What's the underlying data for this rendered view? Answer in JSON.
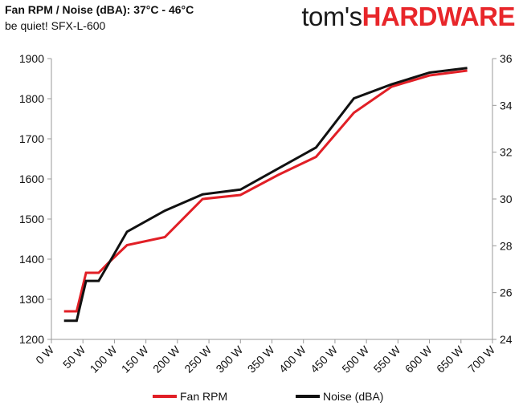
{
  "header": {
    "title": "Fan RPM / Noise (dBA): 37°C - 46°C",
    "subtitle": "be quiet! SFX-L-600",
    "brand_part1": "tom's",
    "brand_part2": "HARDWARE"
  },
  "colors": {
    "fan": "#e11f26",
    "noise": "#111111",
    "axis": "#9a9a9a",
    "brand_red": "#e8262a"
  },
  "chart_data": {
    "type": "line",
    "title": "Fan RPM / Noise (dBA): 37°C - 46°C",
    "subtitle": "be quiet! SFX-L-600",
    "grid": false,
    "legend_position": "bottom",
    "x_ticks": [
      "0 W",
      "50 W",
      "100 W",
      "150 W",
      "200 W",
      "250 W",
      "300 W",
      "350 W",
      "400 W",
      "450 W",
      "500 W",
      "550 W",
      "600 W",
      "650 W",
      "700 W"
    ],
    "xlim": [
      0,
      700
    ],
    "ylim_left": [
      1200,
      1900
    ],
    "y_ticks_left": [
      1200,
      1300,
      1400,
      1500,
      1600,
      1700,
      1800,
      1900
    ],
    "ylim_right": [
      24,
      36
    ],
    "y_ticks_right": [
      24,
      26,
      28,
      30,
      32,
      34,
      36
    ],
    "series": [
      {
        "name": "Fan RPM",
        "axis": "left",
        "x": [
          20,
          40,
          55,
          75,
          90,
          120,
          180,
          240,
          300,
          360,
          420,
          480,
          540,
          600,
          660
        ],
        "y": [
          1270,
          1270,
          1366,
          1366,
          1390,
          1435,
          1455,
          1550,
          1560,
          1610,
          1655,
          1765,
          1830,
          1858,
          1870
        ]
      },
      {
        "name": "Noise (dBA)",
        "axis": "right",
        "x": [
          20,
          40,
          55,
          75,
          90,
          120,
          180,
          240,
          300,
          360,
          420,
          480,
          540,
          600,
          660
        ],
        "y": [
          24.8,
          24.8,
          26.5,
          26.5,
          27.2,
          28.6,
          29.5,
          30.2,
          30.4,
          31.3,
          32.2,
          34.3,
          34.9,
          35.4,
          35.6
        ]
      }
    ]
  }
}
